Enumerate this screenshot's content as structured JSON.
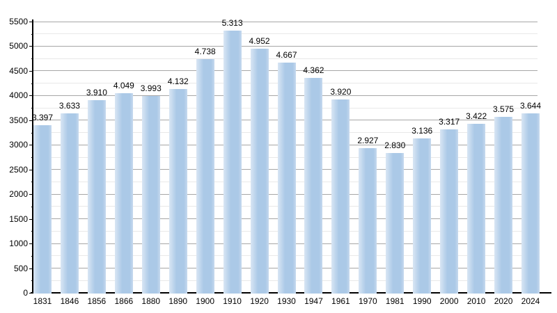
{
  "chart_data": {
    "type": "bar",
    "title": "",
    "xlabel": "",
    "ylabel": "",
    "categories": [
      "1831",
      "1846",
      "1856",
      "1866",
      "1880",
      "1890",
      "1900",
      "1910",
      "1920",
      "1930",
      "1947",
      "1961",
      "1970",
      "1981",
      "1990",
      "2000",
      "2010",
      "2020",
      "2024"
    ],
    "values": [
      3397,
      3633,
      3910,
      4049,
      3993,
      4132,
      4738,
      5313,
      4952,
      4667,
      4362,
      3920,
      2927,
      2830,
      3136,
      3317,
      3422,
      3575,
      3644
    ],
    "value_labels": [
      "3.397",
      "3.633",
      "3.910",
      "4.049",
      "3.993",
      "4.132",
      "4.738",
      "5.313",
      "4.952",
      "4.667",
      "4.362",
      "3.920",
      "2.927",
      "2.830",
      "3.136",
      "3.317",
      "3.422",
      "3.575",
      "3.644"
    ],
    "ylim": [
      0,
      5500
    ],
    "y_major_step": 500,
    "y_minor_step": 250,
    "y_tick_labels": [
      "0",
      "500",
      "1000",
      "1500",
      "2000",
      "2500",
      "3000",
      "3500",
      "4000",
      "4500",
      "5000",
      "5500"
    ],
    "grid": true,
    "legend_position": "none",
    "colors": {
      "bar_fill": "#abc9e7",
      "bar_fill_light_edge": "#d9e6f4",
      "bar_fill_right_edge": "#c6d9ee",
      "grid_major": "#a6a6a6",
      "grid_minor": "#e8e8e8",
      "axis": "#000000",
      "label_text": "#000000",
      "background": "#ffffff"
    }
  }
}
